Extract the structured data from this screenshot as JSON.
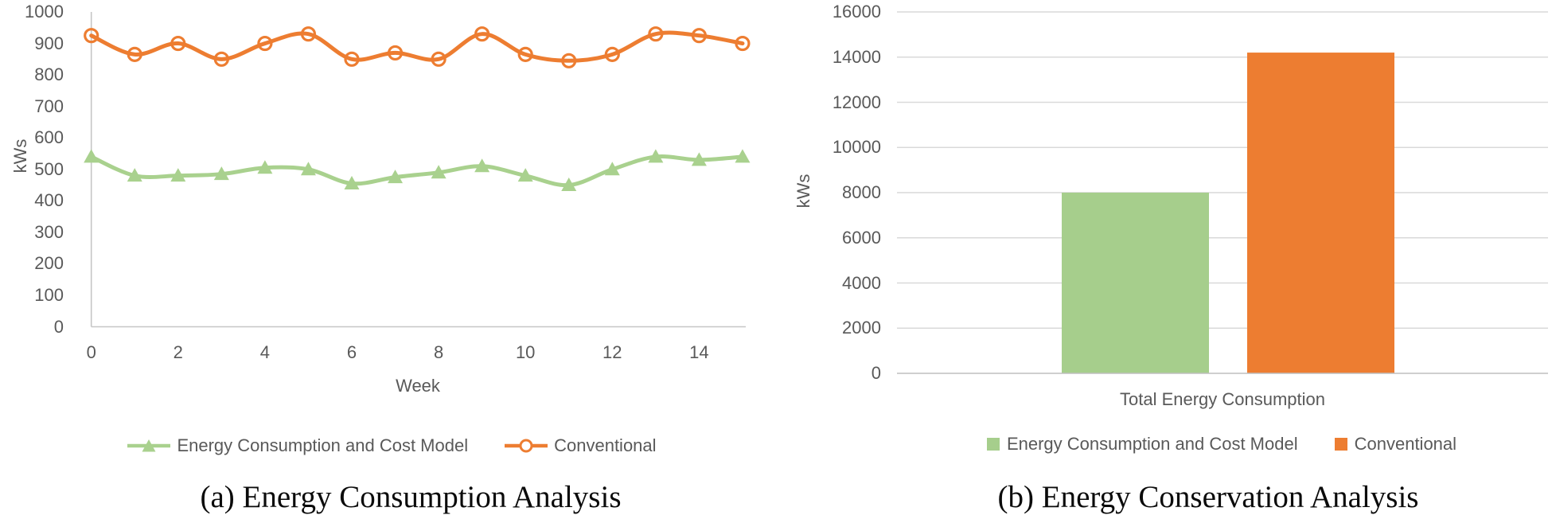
{
  "colors": {
    "green_line": "#A9D18E",
    "green_bar": "#A6CE8C",
    "orange": "#ED7D31",
    "chart_text": "#595959",
    "gridline": "#D9D9D9",
    "axis_line": "#C6C6C6",
    "caption_text": "#0b0b0b",
    "background": "#ffffff"
  },
  "chart_data": [
    {
      "type": "line",
      "title": "(a) Energy Consumption Analysis",
      "xlabel": "Week",
      "ylabel": "kWs",
      "x": [
        0,
        1,
        2,
        3,
        4,
        5,
        6,
        7,
        8,
        9,
        10,
        11,
        12,
        13,
        14,
        15
      ],
      "xticks": [
        0,
        2,
        4,
        6,
        8,
        10,
        12,
        14
      ],
      "yticks": [
        0,
        100,
        200,
        300,
        400,
        500,
        600,
        700,
        800,
        900,
        1000
      ],
      "xlim": [
        0,
        15
      ],
      "ylim": [
        0,
        1000
      ],
      "grid": false,
      "smoothed_lines": true,
      "legend_position": "bottom",
      "series": [
        {
          "name": "Energy Consumption and Cost Model",
          "marker": "triangle-filled",
          "color": "#A9D18E",
          "values": [
            540,
            480,
            480,
            485,
            505,
            500,
            455,
            475,
            490,
            510,
            480,
            450,
            500,
            540,
            530,
            540
          ]
        },
        {
          "name": "Conventional",
          "marker": "circle-open",
          "color": "#ED7D31",
          "values": [
            925,
            865,
            900,
            850,
            900,
            930,
            850,
            870,
            850,
            930,
            865,
            845,
            865,
            930,
            925,
            900
          ]
        }
      ]
    },
    {
      "type": "bar",
      "title": "(b) Energy Conservation Analysis",
      "xlabel": "",
      "ylabel": "kWs",
      "categories": [
        "Total Energy Consumption"
      ],
      "yticks": [
        0,
        2000,
        4000,
        6000,
        8000,
        10000,
        12000,
        14000,
        16000
      ],
      "ylim": [
        0,
        16000
      ],
      "grid": true,
      "legend_position": "bottom",
      "series": [
        {
          "name": "Energy Consumption and Cost Model",
          "color": "#A6CE8C",
          "values": [
            8000
          ]
        },
        {
          "name": "Conventional",
          "color": "#ED7D31",
          "values": [
            14200
          ]
        }
      ]
    }
  ]
}
